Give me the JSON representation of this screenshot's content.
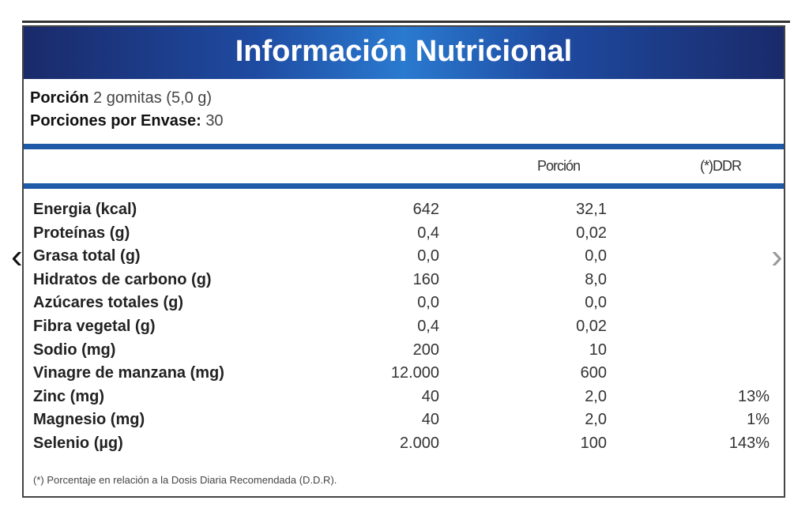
{
  "title": "Información Nutricional",
  "serving": {
    "label": "Porción",
    "value": "2 gomitas (5,0 g)",
    "per_container_label": "Porciones por Envase:",
    "per_container_value": "30"
  },
  "columns": {
    "portion": "Porción",
    "ddr": "(*)DDR"
  },
  "rows": [
    {
      "name": "Energia (kcal)",
      "amount": "642",
      "portion": "32,1",
      "ddr": ""
    },
    {
      "name": "Proteínas (g)",
      "amount": "0,4",
      "portion": "0,02",
      "ddr": ""
    },
    {
      "name": "Grasa total  (g)",
      "amount": "0,0",
      "portion": "0,0",
      "ddr": ""
    },
    {
      "name": "Hidratos de carbono (g)",
      "amount": "160",
      "portion": "8,0",
      "ddr": ""
    },
    {
      "name": "Azúcares totales (g)",
      "amount": "0,0",
      "portion": "0,0",
      "ddr": ""
    },
    {
      "name": "Fibra vegetal (g)",
      "amount": "0,4",
      "portion": "0,02",
      "ddr": ""
    },
    {
      "name": "Sodio (mg)",
      "amount": "200",
      "portion": "10",
      "ddr": ""
    },
    {
      "name": "Vinagre de manzana (mg)",
      "amount": "12.000",
      "portion": "600",
      "ddr": ""
    },
    {
      "name": "Zinc (mg)",
      "amount": "40",
      "portion": "2,0",
      "ddr": "13%"
    },
    {
      "name": "Magnesio (mg)",
      "amount": "40",
      "portion": "2,0",
      "ddr": "1%"
    },
    {
      "name": "Selenio (µg)",
      "amount": "2.000",
      "portion": "100",
      "ddr": "143%"
    }
  ],
  "footnote": "(*) Porcentaje en relación a la Dosis Diaria Recomendada (D.D.R).",
  "nav": {
    "prev": "‹",
    "next": "›"
  }
}
